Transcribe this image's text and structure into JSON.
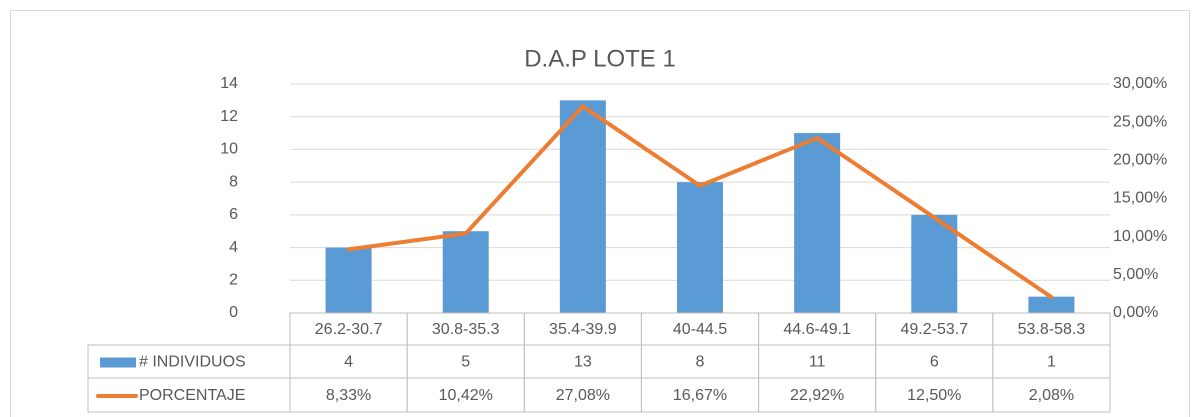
{
  "chart_data": {
    "type": "bar",
    "title": "D.A.P LOTE 1",
    "categories": [
      "26.2-30.7",
      "30.8-35.3",
      "35.4-39.9",
      "40-44.5",
      "44.6-49.1",
      "49.2-53.7",
      "53.8-58.3"
    ],
    "series": [
      {
        "name": "# INDIVIDUOS",
        "color": "#5b9bd5",
        "type": "bar",
        "values": [
          4,
          5,
          13,
          8,
          11,
          6,
          1
        ]
      },
      {
        "name": "PORCENTAJE",
        "color": "#ed7d31",
        "type": "line",
        "axis": "y2",
        "values": [
          8.33,
          10.42,
          27.08,
          16.67,
          22.92,
          12.5,
          2.08
        ],
        "value_labels": [
          "8,33%",
          "10,42%",
          "27,08%",
          "16,67%",
          "22,92%",
          "12,50%",
          "2,08%"
        ]
      }
    ],
    "ylim": [
      0,
      14
    ],
    "yticks": [
      0,
      2,
      4,
      6,
      8,
      10,
      12,
      14
    ],
    "y2lim": [
      0,
      30
    ],
    "y2ticks": [
      {
        "value": 0,
        "label": "0,00%"
      },
      {
        "value": 5,
        "label": "5,00%"
      },
      {
        "value": 10,
        "label": "10,00%"
      },
      {
        "value": 15,
        "label": "15,00%"
      },
      {
        "value": 20,
        "label": "20,00%"
      },
      {
        "value": 25,
        "label": "25,00%"
      },
      {
        "value": 30,
        "label": "30,00%"
      }
    ],
    "grid": true,
    "data_table": true
  }
}
